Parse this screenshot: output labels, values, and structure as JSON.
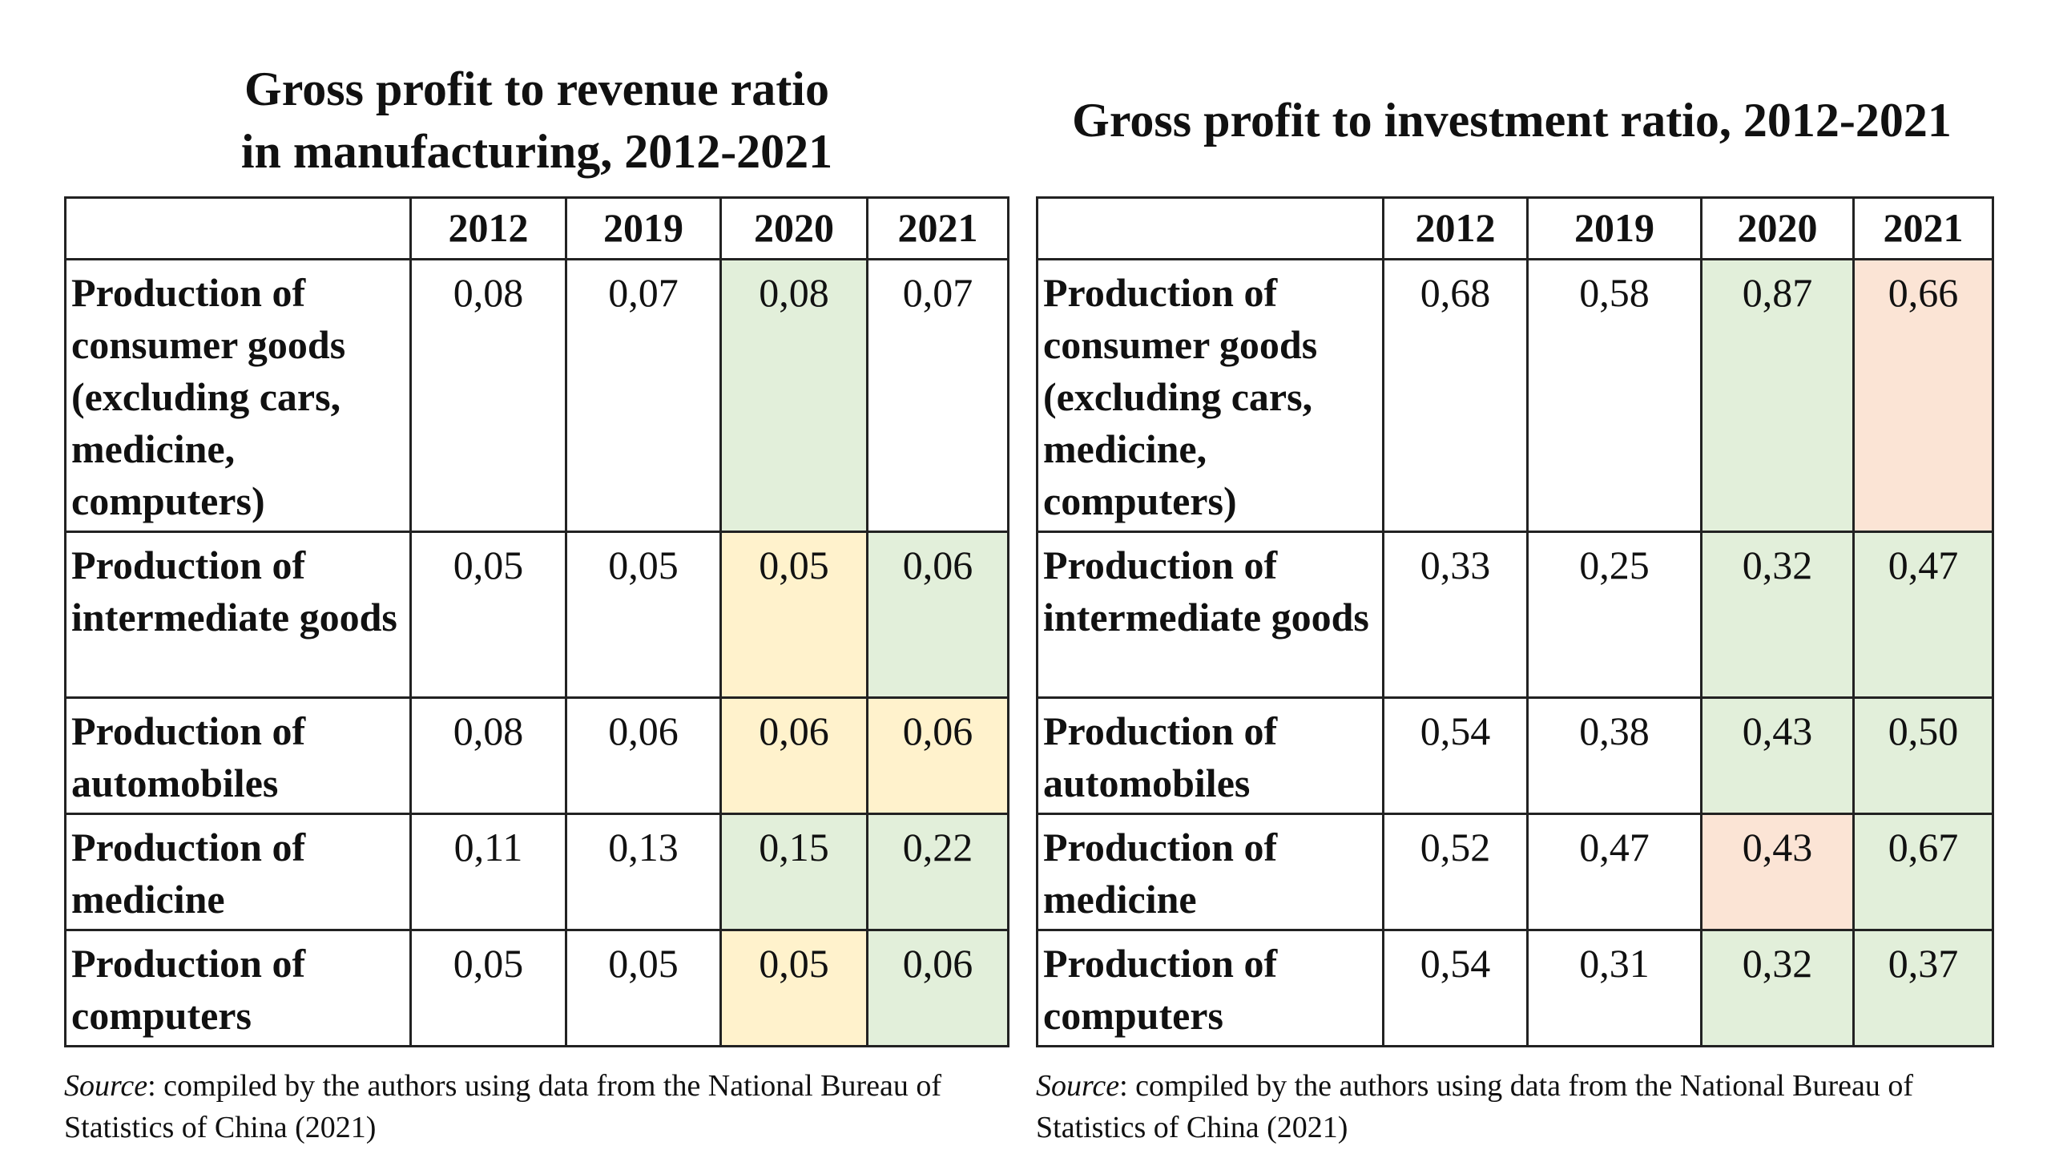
{
  "left": {
    "title_line1": "Gross profit to revenue ratio",
    "title_line2": "in manufacturing, 2012-2021",
    "years": [
      "2012",
      "2019",
      "2020",
      "2021"
    ],
    "rows": [
      {
        "label": "Production of consumer goods (excluding cars, medicine, computers)",
        "values": [
          "0,08",
          "0,07",
          "0,08",
          "0,07"
        ],
        "highlight": [
          "",
          "",
          "green",
          ""
        ]
      },
      {
        "label": "Production of intermediate goods",
        "values": [
          "0,05",
          "0,05",
          "0,05",
          "0,06"
        ],
        "highlight": [
          "",
          "",
          "yellow",
          "green"
        ]
      },
      {
        "label": "Production of automobiles",
        "values": [
          "0,08",
          "0,06",
          "0,06",
          "0,06"
        ],
        "highlight": [
          "",
          "",
          "yellow",
          "yellow"
        ]
      },
      {
        "label": "Production of medicine",
        "values": [
          "0,11",
          "0,13",
          "0,15",
          "0,22"
        ],
        "highlight": [
          "",
          "",
          "green",
          "green"
        ]
      },
      {
        "label": "Production of computers",
        "values": [
          "0,05",
          "0,05",
          "0,05",
          "0,06"
        ],
        "highlight": [
          "",
          "",
          "yellow",
          "green"
        ]
      }
    ],
    "source_label": "Source",
    "source_text": ": compiled by the authors using data from the National Bureau of Statistics of China (2021)"
  },
  "right": {
    "title": "Gross profit to investment ratio, 2012-2021",
    "years": [
      "2012",
      "2019",
      "2020",
      "2021"
    ],
    "rows": [
      {
        "label": "Production of consumer goods (excluding cars, medicine, computers)",
        "values": [
          "0,68",
          "0,58",
          "0,87",
          "0,66"
        ],
        "highlight": [
          "",
          "",
          "green",
          "red"
        ]
      },
      {
        "label": "Production of intermediate goods",
        "values": [
          "0,33",
          "0,25",
          "0,32",
          "0,47"
        ],
        "highlight": [
          "",
          "",
          "green",
          "green"
        ]
      },
      {
        "label": "Production of automobiles",
        "values": [
          "0,54",
          "0,38",
          "0,43",
          "0,50"
        ],
        "highlight": [
          "",
          "",
          "green",
          "green"
        ]
      },
      {
        "label": "Production of medicine",
        "values": [
          "0,52",
          "0,47",
          "0,43",
          "0,67"
        ],
        "highlight": [
          "",
          "",
          "red",
          "green"
        ]
      },
      {
        "label": "Production of computers",
        "values": [
          "0,54",
          "0,31",
          "0,32",
          "0,37"
        ],
        "highlight": [
          "",
          "",
          "green",
          "green"
        ]
      }
    ],
    "source_label": "Source",
    "source_text": ": compiled by the authors using data from the National Bureau of Statistics of China (2021)"
  },
  "colors": {
    "green": "#e2efda",
    "yellow": "#fff2cc",
    "red": "#fbe4d5"
  }
}
